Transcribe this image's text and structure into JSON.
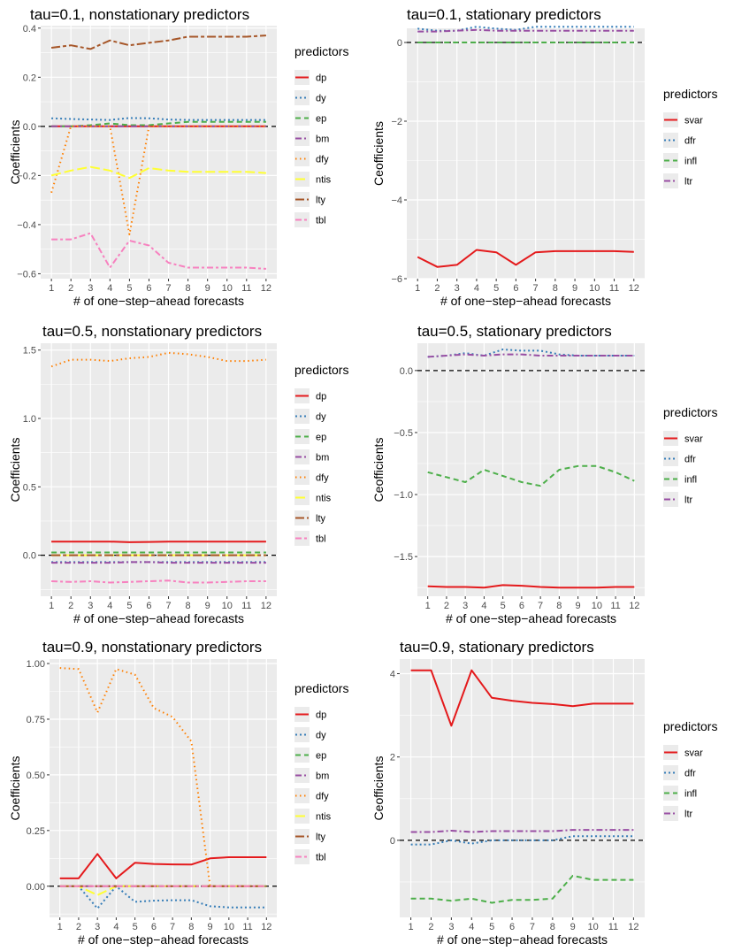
{
  "colors": {
    "dp": "#E41A1C",
    "dy": "#377EB8",
    "ep": "#4DAF4A",
    "bm": "#984EA3",
    "dfy": "#FF7F00",
    "ntis": "#FFFF33",
    "lty": "#A65628",
    "tbl": "#F781BF",
    "svar": "#E41A1C",
    "dfr": "#377EB8",
    "infl": "#4DAF4A",
    "ltr": "#984EA3",
    "panel_bg": "#EBEBEB",
    "grid": "#FFFFFF",
    "zero_line": "#000000"
  },
  "line_styles": {
    "dp": "solid",
    "dy": "dotted",
    "ep": "dashed",
    "bm": "dashdot",
    "dfy": "densedot",
    "ntis": "longdash",
    "lty": "twodash",
    "tbl": "twodash2",
    "svar": "solid",
    "dfr": "dotted",
    "infl": "dashed",
    "ltr": "dashdot"
  },
  "chart_data": [
    {
      "type": "line",
      "title": "tau=0.1, nonstationary predictors",
      "xlabel": "# of one−step−ahead forecasts",
      "ylabel": "Coefficients",
      "x": [
        1,
        2,
        3,
        4,
        5,
        6,
        7,
        8,
        9,
        10,
        11,
        12
      ],
      "ylim": [
        -0.62,
        0.41
      ],
      "yticks": [
        -0.6,
        -0.4,
        -0.2,
        0.0,
        0.2,
        0.4
      ],
      "ytick_labels": [
        "−0.6",
        "−0.4",
        "−0.2",
        "0.0",
        "0.2",
        "0.4"
      ],
      "xtick_labels": [
        "1",
        "2",
        "3",
        "4",
        "5",
        "6",
        "7",
        "8",
        "9",
        "10",
        "11",
        "12"
      ],
      "legend_title": "predictors",
      "legend_position": "right",
      "series": [
        {
          "name": "dp",
          "values": [
            0.0,
            0.0,
            0.0,
            0.0,
            0.0,
            0.0,
            0.0,
            0.0,
            0.0,
            0.0,
            0.0,
            0.0
          ]
        },
        {
          "name": "dy",
          "values": [
            0.033,
            0.03,
            0.028,
            0.026,
            0.034,
            0.033,
            0.028,
            0.026,
            0.026,
            0.026,
            0.026,
            0.026
          ]
        },
        {
          "name": "ep",
          "values": [
            0.0,
            0.0,
            0.005,
            0.012,
            0.005,
            0.005,
            0.012,
            0.018,
            0.018,
            0.018,
            0.018,
            0.018
          ]
        },
        {
          "name": "bm",
          "values": [
            0.0,
            0.0,
            0.0,
            0.0,
            0.0,
            0.0,
            0.0,
            0.0,
            0.0,
            0.0,
            0.0,
            0.0
          ]
        },
        {
          "name": "dfy",
          "values": [
            -0.27,
            0.0,
            0.0,
            0.0,
            -0.44,
            0.0,
            0.0,
            0.0,
            0.0,
            0.0,
            0.0,
            0.0
          ]
        },
        {
          "name": "ntis",
          "values": [
            -0.2,
            -0.18,
            -0.165,
            -0.18,
            -0.21,
            -0.17,
            -0.18,
            -0.185,
            -0.185,
            -0.185,
            -0.185,
            -0.19
          ]
        },
        {
          "name": "lty",
          "values": [
            0.32,
            0.33,
            0.315,
            0.35,
            0.33,
            0.34,
            0.35,
            0.365,
            0.365,
            0.365,
            0.365,
            0.37
          ]
        },
        {
          "name": "tbl",
          "values": [
            -0.46,
            -0.46,
            -0.435,
            -0.575,
            -0.465,
            -0.485,
            -0.555,
            -0.575,
            -0.575,
            -0.575,
            -0.575,
            -0.58
          ]
        }
      ]
    },
    {
      "type": "line",
      "title": "tau=0.1, stationary predictors",
      "xlabel": "# of one−step−ahead forecasts",
      "ylabel": "Ceofficients",
      "x": [
        1,
        2,
        3,
        4,
        5,
        6,
        7,
        8,
        9,
        10,
        11,
        12
      ],
      "ylim": [
        -6.0,
        0.36
      ],
      "yticks": [
        -6,
        -4,
        -2,
        0
      ],
      "ytick_labels": [
        "−6",
        "−4",
        "−2",
        "0"
      ],
      "xtick_labels": [
        "1",
        "2",
        "3",
        "4",
        "5",
        "6",
        "7",
        "8",
        "9",
        "10",
        "11",
        "12"
      ],
      "legend_title": "predictors",
      "legend_position": "right",
      "series": [
        {
          "name": "svar",
          "values": [
            -5.45,
            -5.7,
            -5.65,
            -5.27,
            -5.33,
            -5.65,
            -5.33,
            -5.3,
            -5.3,
            -5.3,
            -5.3,
            -5.32
          ]
        },
        {
          "name": "dfr",
          "values": [
            0.35,
            0.3,
            0.3,
            0.4,
            0.35,
            0.32,
            0.4,
            0.4,
            0.4,
            0.4,
            0.4,
            0.4
          ]
        },
        {
          "name": "infl",
          "values": [
            0.0,
            0.0,
            0.0,
            0.0,
            0.0,
            0.0,
            0.0,
            0.0,
            0.0,
            0.0,
            0.0,
            0.0
          ]
        },
        {
          "name": "ltr",
          "values": [
            0.28,
            0.28,
            0.3,
            0.32,
            0.3,
            0.3,
            0.3,
            0.3,
            0.3,
            0.3,
            0.3,
            0.3
          ]
        }
      ]
    },
    {
      "type": "line",
      "title": "tau=0.5, nonstationary predictors",
      "xlabel": "# of one−step−ahead forecasts",
      "ylabel": "Coefficients",
      "x": [
        1,
        2,
        3,
        4,
        5,
        6,
        7,
        8,
        9,
        10,
        11,
        12
      ],
      "ylim": [
        -0.3,
        1.55
      ],
      "yticks": [
        0.0,
        0.5,
        1.0,
        1.5
      ],
      "ytick_labels": [
        "0.0",
        "0.5",
        "1.0",
        "1.5"
      ],
      "xtick_labels": [
        "1",
        "2",
        "3",
        "4",
        "5",
        "6",
        "7",
        "8",
        "9",
        "10",
        "11",
        "12"
      ],
      "legend_title": "predictors",
      "legend_position": "right",
      "series": [
        {
          "name": "dp",
          "values": [
            0.1,
            0.1,
            0.1,
            0.1,
            0.095,
            0.097,
            0.1,
            0.1,
            0.1,
            0.1,
            0.1,
            0.1
          ]
        },
        {
          "name": "dy",
          "values": [
            -0.05,
            -0.05,
            -0.05,
            -0.05,
            -0.05,
            -0.05,
            -0.05,
            -0.05,
            -0.05,
            -0.05,
            -0.05,
            -0.05
          ]
        },
        {
          "name": "ep",
          "values": [
            0.02,
            0.02,
            0.02,
            0.02,
            0.02,
            0.02,
            0.02,
            0.02,
            0.02,
            0.02,
            0.02,
            0.02
          ]
        },
        {
          "name": "bm",
          "values": [
            -0.055,
            -0.055,
            -0.055,
            -0.055,
            -0.05,
            -0.05,
            -0.055,
            -0.055,
            -0.055,
            -0.055,
            -0.055,
            -0.055
          ]
        },
        {
          "name": "dfy",
          "values": [
            1.38,
            1.43,
            1.43,
            1.42,
            1.44,
            1.45,
            1.48,
            1.47,
            1.45,
            1.42,
            1.42,
            1.43
          ]
        },
        {
          "name": "ntis",
          "values": [
            0.0,
            0.0,
            0.0,
            0.0,
            0.0,
            0.0,
            0.0,
            0.0,
            0.0,
            0.0,
            0.0,
            0.0
          ]
        },
        {
          "name": "lty",
          "values": [
            0.0,
            0.0,
            0.0,
            0.0,
            0.0,
            0.0,
            0.0,
            0.0,
            0.0,
            0.0,
            0.0,
            0.0
          ]
        },
        {
          "name": "tbl",
          "values": [
            -0.19,
            -0.195,
            -0.19,
            -0.2,
            -0.195,
            -0.19,
            -0.185,
            -0.2,
            -0.2,
            -0.195,
            -0.19,
            -0.19
          ]
        }
      ]
    },
    {
      "type": "line",
      "title": "tau=0.5, stationary predictors",
      "xlabel": "# of one−step−ahead forecasts",
      "ylabel": "Ceofficients",
      "x": [
        1,
        2,
        3,
        4,
        5,
        6,
        7,
        8,
        9,
        10,
        11,
        12
      ],
      "ylim": [
        -1.82,
        0.22
      ],
      "yticks": [
        -1.5,
        -1.0,
        -0.5,
        0.0
      ],
      "ytick_labels": [
        "−1.5",
        "−1.0",
        "−0.5",
        "0.0"
      ],
      "xtick_labels": [
        "1",
        "2",
        "3",
        "4",
        "5",
        "6",
        "7",
        "8",
        "9",
        "10",
        "11",
        "12"
      ],
      "legend_title": "predictors",
      "legend_position": "right",
      "series": [
        {
          "name": "svar",
          "values": [
            -1.74,
            -1.745,
            -1.745,
            -1.75,
            -1.73,
            -1.735,
            -1.745,
            -1.75,
            -1.75,
            -1.75,
            -1.745,
            -1.745
          ]
        },
        {
          "name": "dfr",
          "values": [
            0.11,
            0.12,
            0.14,
            0.12,
            0.17,
            0.16,
            0.16,
            0.13,
            0.12,
            0.12,
            0.12,
            0.12
          ]
        },
        {
          "name": "infl",
          "values": [
            -0.82,
            -0.86,
            -0.9,
            -0.8,
            -0.85,
            -0.9,
            -0.93,
            -0.8,
            -0.77,
            -0.77,
            -0.82,
            -0.89
          ]
        },
        {
          "name": "ltr",
          "values": [
            0.11,
            0.12,
            0.13,
            0.12,
            0.13,
            0.13,
            0.12,
            0.12,
            0.12,
            0.12,
            0.12,
            0.12
          ]
        }
      ]
    },
    {
      "type": "line",
      "title": "tau=0.9, nonstationary predictors",
      "xlabel": "# of one−step−ahead forecasts",
      "ylabel": "Coefficients",
      "x": [
        1,
        2,
        3,
        4,
        5,
        6,
        7,
        8,
        9,
        10,
        11,
        12
      ],
      "ylim": [
        -0.14,
        1.02
      ],
      "yticks": [
        0.0,
        0.25,
        0.5,
        0.75,
        1.0
      ],
      "ytick_labels": [
        "0.00",
        "0.25",
        "0.50",
        "0.75",
        "1.00"
      ],
      "xtick_labels": [
        "1",
        "2",
        "3",
        "4",
        "5",
        "6",
        "7",
        "8",
        "9",
        "10",
        "11",
        "12"
      ],
      "legend_title": "predictors",
      "legend_position": "right",
      "series": [
        {
          "name": "dp",
          "values": [
            0.035,
            0.035,
            0.145,
            0.035,
            0.105,
            0.1,
            0.098,
            0.097,
            0.125,
            0.13,
            0.13,
            0.13
          ]
        },
        {
          "name": "dy",
          "values": [
            0.0,
            0.0,
            -0.1,
            0.0,
            -0.07,
            -0.065,
            -0.063,
            -0.063,
            -0.09,
            -0.095,
            -0.095,
            -0.095
          ]
        },
        {
          "name": "ep",
          "values": [
            0.0,
            0.0,
            0.0,
            0.0,
            0.0,
            0.0,
            0.0,
            0.0,
            0.0,
            0.0,
            0.0,
            0.0
          ]
        },
        {
          "name": "bm",
          "values": [
            0.0,
            0.0,
            0.0,
            0.0,
            0.0,
            0.0,
            0.0,
            0.0,
            0.0,
            0.0,
            0.0,
            0.0
          ]
        },
        {
          "name": "dfy",
          "values": [
            0.98,
            0.975,
            0.78,
            0.975,
            0.95,
            0.8,
            0.76,
            0.65,
            0.0,
            0.0,
            0.0,
            0.0
          ]
        },
        {
          "name": "ntis",
          "values": [
            0.0,
            0.0,
            -0.04,
            0.0,
            0.0,
            0.0,
            0.0,
            0.0,
            0.0,
            0.0,
            0.0,
            0.0
          ]
        },
        {
          "name": "lty",
          "values": [
            0.0,
            0.0,
            0.0,
            0.0,
            0.0,
            0.0,
            0.0,
            0.0,
            0.0,
            0.0,
            0.0,
            0.0
          ]
        },
        {
          "name": "tbl",
          "values": [
            0.0,
            0.0,
            0.0,
            0.0,
            0.0,
            0.0,
            0.0,
            0.0,
            0.0,
            0.0,
            0.0,
            0.0
          ]
        }
      ]
    },
    {
      "type": "line",
      "title": "tau=0.9, stationary predictors",
      "xlabel": "# of one−step−ahead forecasts",
      "ylabel": "Ceofficients",
      "x": [
        1,
        2,
        3,
        4,
        5,
        6,
        7,
        8,
        9,
        10,
        11,
        12
      ],
      "ylim": [
        -1.85,
        4.35
      ],
      "yticks": [
        0,
        2,
        4
      ],
      "ytick_labels": [
        "0",
        "2",
        "4"
      ],
      "xtick_labels": [
        "1",
        "2",
        "3",
        "4",
        "5",
        "6",
        "7",
        "8",
        "9",
        "10",
        "11",
        "12"
      ],
      "legend_title": "predictors",
      "legend_position": "right",
      "series": [
        {
          "name": "svar",
          "values": [
            4.08,
            4.08,
            2.75,
            4.08,
            3.42,
            3.35,
            3.3,
            3.27,
            3.22,
            3.28,
            3.28,
            3.28
          ]
        },
        {
          "name": "dfr",
          "values": [
            -0.1,
            -0.1,
            0.0,
            -0.08,
            0.0,
            0.0,
            0.0,
            0.0,
            0.1,
            0.1,
            0.1,
            0.1
          ]
        },
        {
          "name": "infl",
          "values": [
            -1.4,
            -1.4,
            -1.45,
            -1.4,
            -1.5,
            -1.43,
            -1.43,
            -1.4,
            -0.85,
            -0.95,
            -0.95,
            -0.95
          ]
        },
        {
          "name": "ltr",
          "values": [
            0.2,
            0.2,
            0.23,
            0.2,
            0.22,
            0.22,
            0.22,
            0.22,
            0.25,
            0.25,
            0.25,
            0.25
          ]
        }
      ]
    }
  ]
}
